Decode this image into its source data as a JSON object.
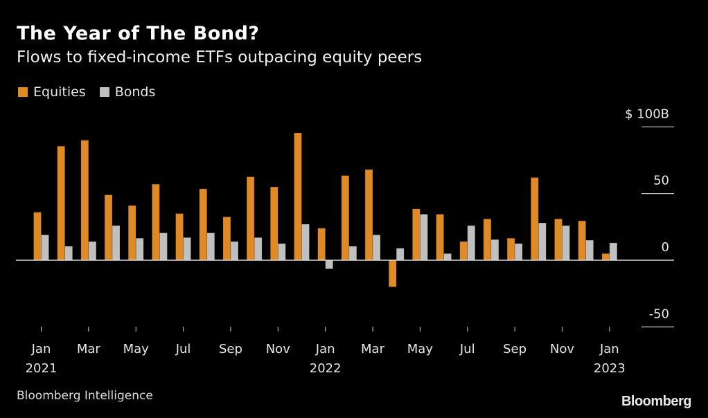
{
  "header": {
    "title": "The Year of The Bond?",
    "subtitle": "Flows to fixed-income ETFs outpacing equity peers"
  },
  "legend": [
    {
      "label": "Equities",
      "color": "#e08a26"
    },
    {
      "label": "Bonds",
      "color": "#c0c0c0"
    }
  ],
  "footer": {
    "source": "Bloomberg Intelligence",
    "brand": "Bloomberg"
  },
  "chart_data": {
    "type": "bar",
    "title": "The Year of The Bond?",
    "subtitle": "Flows to fixed-income ETFs outpacing equity peers",
    "xlabel": "",
    "ylabel": "$ B",
    "ylim": [
      -50,
      100
    ],
    "yticks": [
      {
        "value": 100,
        "label": "$ 100B"
      },
      {
        "value": 50,
        "label": "50"
      },
      {
        "value": 0,
        "label": "0"
      },
      {
        "value": -50,
        "label": "-50"
      }
    ],
    "grid": false,
    "legend_position": "top-left",
    "categories": [
      "Jan 2021",
      "Feb 2021",
      "Mar 2021",
      "Apr 2021",
      "May 2021",
      "Jun 2021",
      "Jul 2021",
      "Aug 2021",
      "Sep 2021",
      "Oct 2021",
      "Nov 2021",
      "Dec 2021",
      "Jan 2022",
      "Feb 2022",
      "Mar 2022",
      "Apr 2022",
      "May 2022",
      "Jun 2022",
      "Jul 2022",
      "Aug 2022",
      "Sep 2022",
      "Oct 2022",
      "Nov 2022",
      "Dec 2022",
      "Jan 2023"
    ],
    "xticks": [
      {
        "index": 0,
        "month": "Jan",
        "year": "2021"
      },
      {
        "index": 2,
        "month": "Mar",
        "year": ""
      },
      {
        "index": 4,
        "month": "May",
        "year": ""
      },
      {
        "index": 6,
        "month": "Jul",
        "year": ""
      },
      {
        "index": 8,
        "month": "Sep",
        "year": ""
      },
      {
        "index": 10,
        "month": "Nov",
        "year": ""
      },
      {
        "index": 12,
        "month": "Jan",
        "year": "2022"
      },
      {
        "index": 14,
        "month": "Mar",
        "year": ""
      },
      {
        "index": 16,
        "month": "May",
        "year": ""
      },
      {
        "index": 18,
        "month": "Jul",
        "year": ""
      },
      {
        "index": 20,
        "month": "Sep",
        "year": ""
      },
      {
        "index": 22,
        "month": "Nov",
        "year": ""
      },
      {
        "index": 24,
        "month": "Jan",
        "year": "2023"
      }
    ],
    "series": [
      {
        "name": "Equities",
        "color": "#e08a26",
        "values": [
          36,
          85.5,
          90,
          49,
          41,
          57,
          35,
          53.5,
          32.5,
          62.5,
          55,
          95.5,
          24,
          63.5,
          68,
          -20,
          38.5,
          34.5,
          14,
          31,
          16.5,
          62,
          31,
          29.5,
          5
        ]
      },
      {
        "name": "Bonds",
        "color": "#c0c0c0",
        "values": [
          19,
          10.5,
          14,
          26,
          16.5,
          20.5,
          17,
          20.5,
          14,
          17,
          12.5,
          27,
          -6.5,
          10.5,
          19,
          9,
          34.5,
          5,
          26,
          15.5,
          12.5,
          28,
          26,
          15,
          13
        ]
      }
    ]
  }
}
